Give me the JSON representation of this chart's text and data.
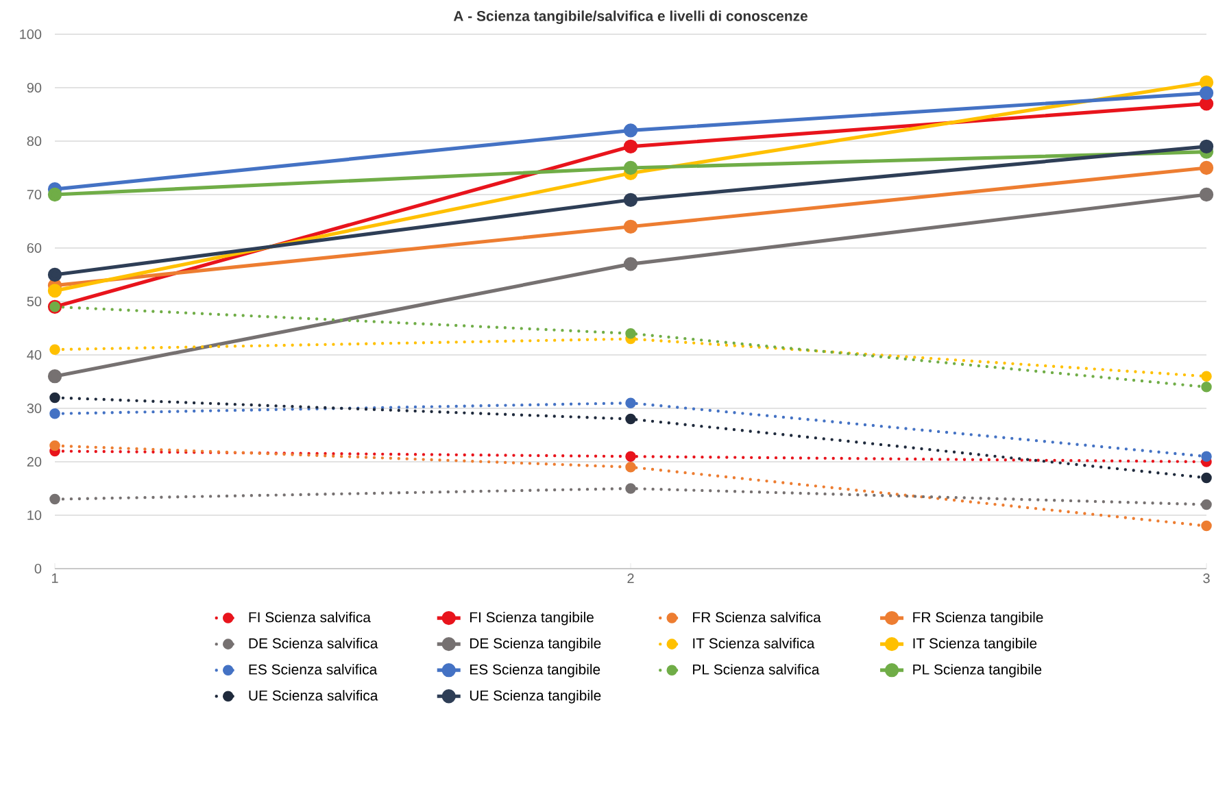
{
  "chart_data": {
    "type": "line",
    "title": "A - Scienza tangibile/salvifica e livelli di conoscenze",
    "x": [
      1,
      2,
      3
    ],
    "xlim": [
      1,
      3
    ],
    "xticks": [
      1,
      2,
      3
    ],
    "ylim": [
      0,
      100
    ],
    "yticks": [
      0,
      10,
      20,
      30,
      40,
      50,
      60,
      70,
      80,
      90,
      100
    ],
    "grid": "y",
    "legend": "bottom",
    "marker": "circle",
    "series": [
      {
        "name": "FI Scienza salvifica",
        "color": "#e8141c",
        "line_style": "dotted",
        "values": [
          22,
          21,
          20
        ]
      },
      {
        "name": "FI Scienza tangibile",
        "color": "#e8141c",
        "line_style": "solid",
        "values": [
          49,
          79,
          87
        ]
      },
      {
        "name": "FR Scienza salvifica",
        "color": "#ed7d31",
        "line_style": "dotted",
        "values": [
          23,
          19,
          8
        ]
      },
      {
        "name": "FR Scienza tangibile",
        "color": "#ed7d31",
        "line_style": "solid",
        "values": [
          53,
          64,
          75
        ]
      },
      {
        "name": "DE Scienza salvifica",
        "color": "#767171",
        "line_style": "dotted",
        "values": [
          13,
          15,
          12
        ]
      },
      {
        "name": "DE Scienza tangibile",
        "color": "#767171",
        "line_style": "solid",
        "values": [
          36,
          57,
          70
        ]
      },
      {
        "name": "IT Scienza salvifica",
        "color": "#ffc000",
        "line_style": "dotted",
        "values": [
          41,
          43,
          36
        ]
      },
      {
        "name": "IT Scienza tangibile",
        "color": "#ffc000",
        "line_style": "solid",
        "values": [
          52,
          74,
          91
        ]
      },
      {
        "name": "ES Scienza salvifica",
        "color": "#4472c4",
        "line_style": "dotted",
        "values": [
          29,
          31,
          21
        ]
      },
      {
        "name": "ES Scienza tangibile",
        "color": "#4472c4",
        "line_style": "solid",
        "values": [
          71,
          82,
          89
        ]
      },
      {
        "name": "PL Scienza salvifica",
        "color": "#70ad47",
        "line_style": "dotted",
        "values": [
          49,
          44,
          34
        ]
      },
      {
        "name": "PL Scienza tangibile",
        "color": "#70ad47",
        "line_style": "solid",
        "values": [
          70,
          75,
          78
        ]
      },
      {
        "name": "UE Scienza salvifica",
        "color": "#1f2a3c",
        "line_style": "dotted",
        "values": [
          32,
          28,
          17
        ]
      },
      {
        "name": "UE Scienza tangibile",
        "color": "#2e3e56",
        "line_style": "solid",
        "values": [
          55,
          69,
          79
        ]
      }
    ]
  }
}
